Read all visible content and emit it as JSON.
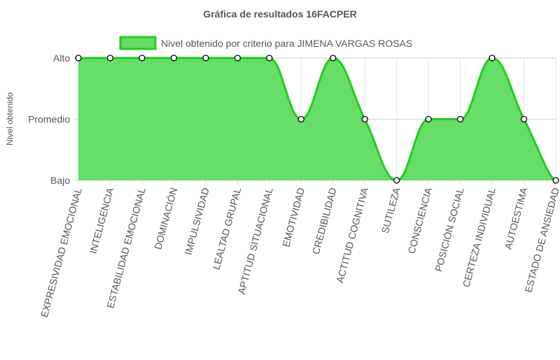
{
  "chart_data": {
    "type": "area",
    "title": "Gráfica de resultados 16FACPER",
    "ylabel": "Nivel obtenido",
    "xlabel": "",
    "y_levels": [
      "Bajo",
      "Promedio",
      "Alto"
    ],
    "categories": [
      "EXPRESIVIDAD EMOCIONAL",
      "INTELIGENCIA",
      "ESTABILIDAD EMOCIONAL",
      "DOMINACIÓN",
      "IMPULSIVIDAD",
      "LEALTAD GRUPAL",
      "APTITUD SITUACIONAL",
      "EMOTIVIDAD",
      "CREDIBILIDAD",
      "ACTITUD COGNITIVA",
      "SUTILEZA",
      "CONSCIENCIA",
      "POSICIÓN SOCIAL",
      "CERTEZA INDIVIDUAL",
      "AUTOESTIMA",
      "ESTADO DE ANSIEDAD"
    ],
    "series": [
      {
        "name": "Nivel obtenido por criterio para JIMENA VARGAS ROSAS",
        "values": [
          2,
          2,
          2,
          2,
          2,
          2,
          2,
          1,
          2,
          1,
          0,
          1,
          1,
          2,
          1,
          0
        ]
      }
    ],
    "ylim": [
      0,
      2
    ],
    "grid": true,
    "legend": "top-center",
    "colors": {
      "fill": "#66dd66",
      "line": "#22cc22",
      "point_fill": "#ffffff",
      "point_stroke": "#000000"
    }
  }
}
